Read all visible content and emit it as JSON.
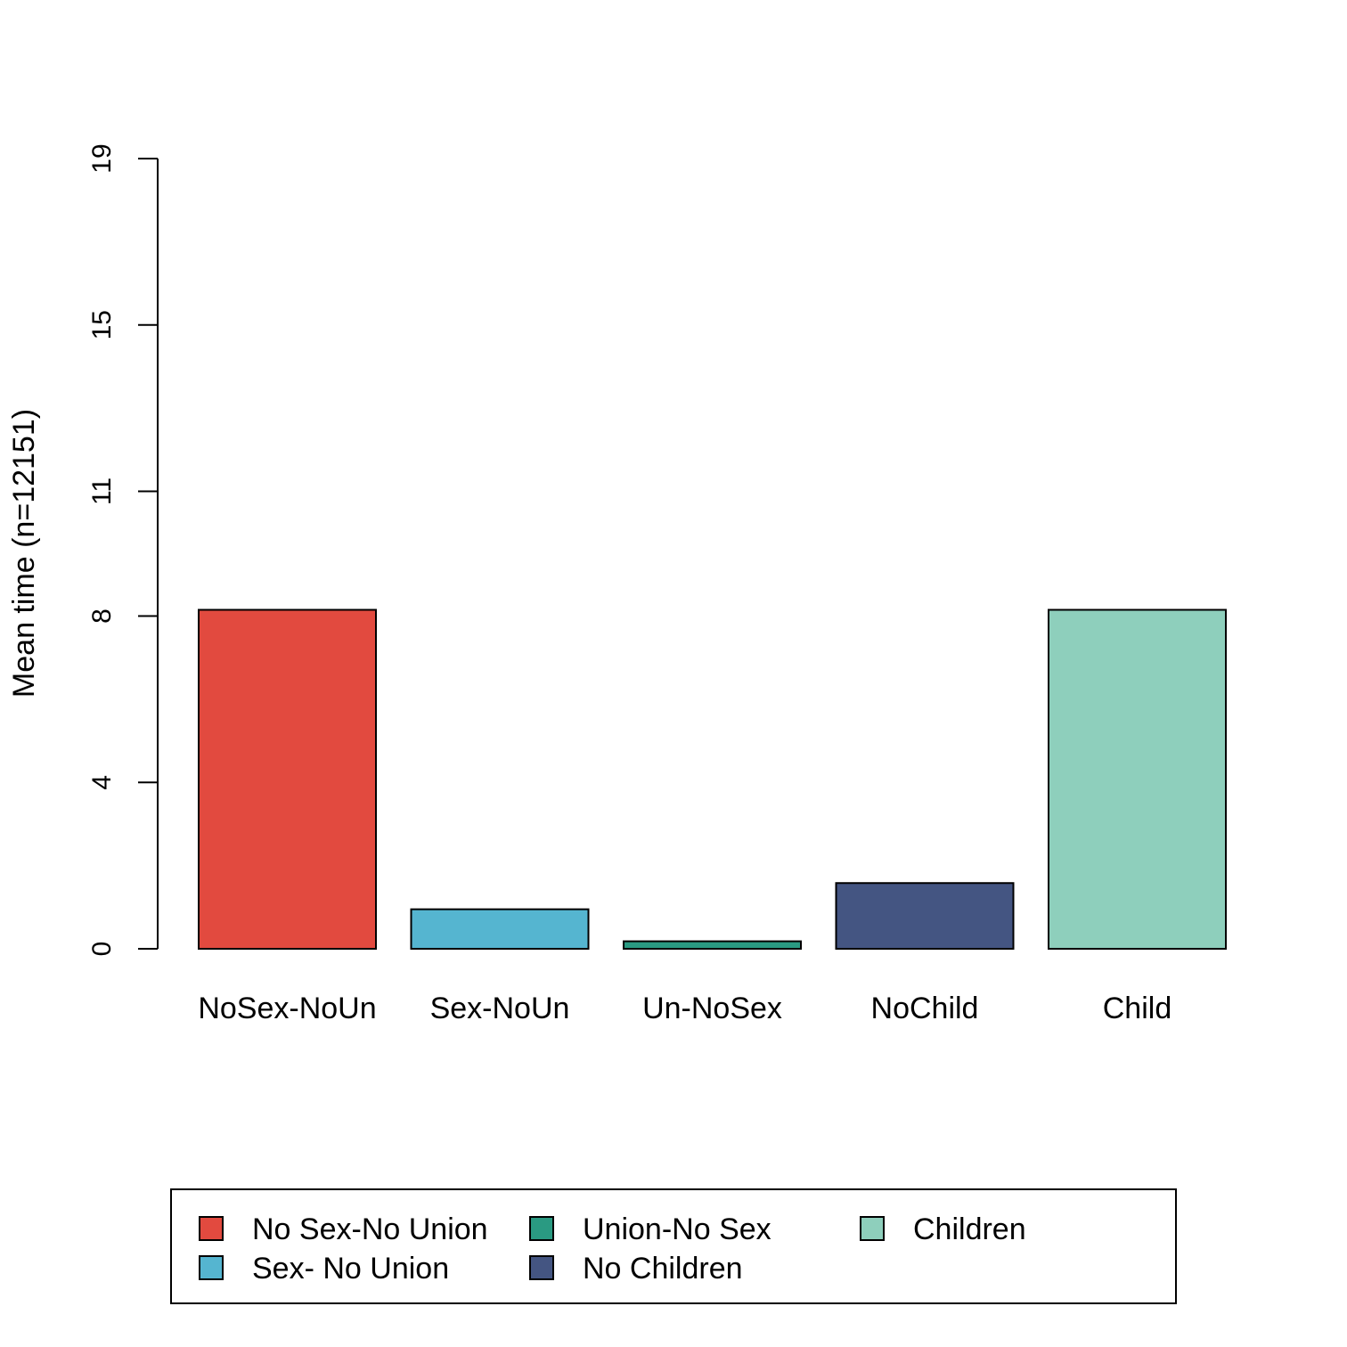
{
  "chart_data": {
    "type": "bar",
    "title": "",
    "xlabel": "",
    "ylabel": "Mean time (n=12151)",
    "ylim": [
      0,
      19
    ],
    "yticks": [
      0,
      4,
      8,
      11,
      15,
      19
    ],
    "categories": [
      "NoSex-NoUn",
      "Sex-NoUn",
      "Un-NoSex",
      "NoChild",
      "Child"
    ],
    "values": [
      8.15,
      0.95,
      0.18,
      1.58,
      8.15
    ],
    "colors": [
      "#e24a3f",
      "#55b5d0",
      "#2a9a82",
      "#445582",
      "#8ecfbc"
    ],
    "legend": {
      "placement": "bottom",
      "entries": [
        {
          "label": "No Sex-No Union",
          "color": "#e24a3f"
        },
        {
          "label": "Sex- No Union",
          "color": "#55b5d0"
        },
        {
          "label": "Union-No Sex",
          "color": "#2a9a82"
        },
        {
          "label": "No Children",
          "color": "#445582"
        },
        {
          "label": "Children",
          "color": "#8ecfbc"
        }
      ]
    }
  }
}
